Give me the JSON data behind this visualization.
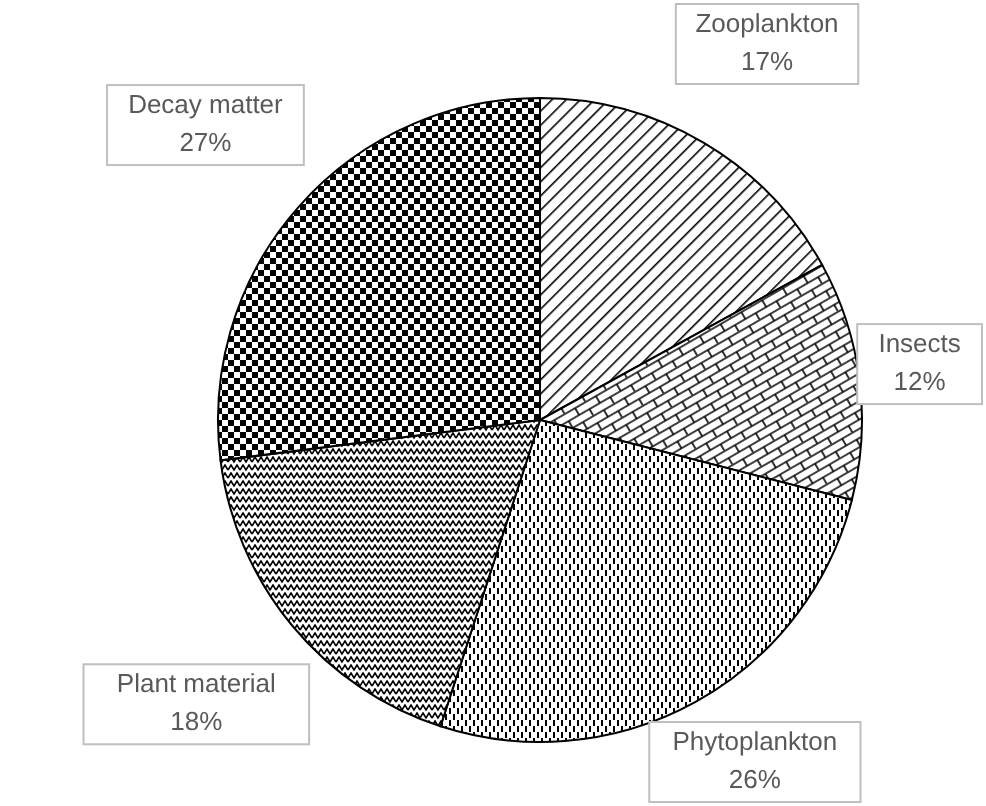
{
  "chart_data": {
    "type": "pie",
    "categories": [
      "Zooplankton",
      "Insects",
      "Phytoplankton",
      "Plant material",
      "Decay matter"
    ],
    "values": [
      17,
      12,
      26,
      18,
      27
    ],
    "value_labels": [
      "17%",
      "12%",
      "26%",
      "18%",
      "27%"
    ],
    "colors": [
      "#000000",
      "#000000",
      "#000000",
      "#000000",
      "#000000"
    ]
  }
}
